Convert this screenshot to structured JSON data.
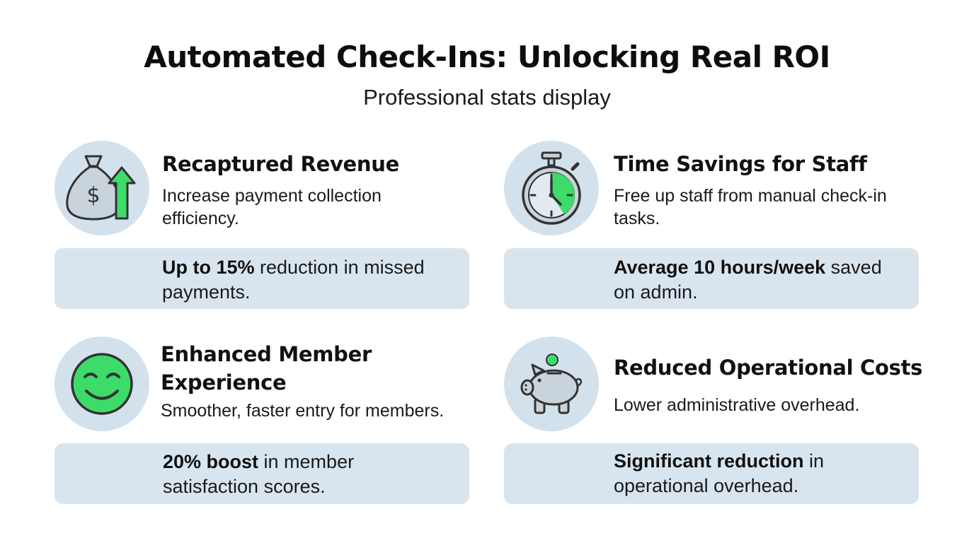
{
  "header": {
    "title": "Automated Check-Ins: Unlocking Real ROI",
    "subtitle": "Professional stats display"
  },
  "cards": [
    {
      "icon": "money-bag-arrow-up-icon",
      "title": "Recaptured Revenue",
      "description": "Increase payment collection efficiency.",
      "stat_highlight": "Up to 15%",
      "stat_rest": " reduction in missed payments."
    },
    {
      "icon": "stopwatch-icon",
      "title": "Time Savings for Staff",
      "description": "Free up staff from manual check-in tasks.",
      "stat_highlight": "Average 10 hours/week",
      "stat_rest": " saved on admin."
    },
    {
      "icon": "smiley-face-icon",
      "title": "Enhanced Member Experience",
      "description": "Smoother, faster entry for members.",
      "stat_highlight": "20% boost",
      "stat_rest": " in member satisfaction scores."
    },
    {
      "icon": "piggy-bank-icon",
      "title": "Reduced Operational Costs",
      "description": "Lower administrative overhead.",
      "stat_highlight": "Significant reduction",
      "stat_rest": " in operational overhead."
    }
  ],
  "colors": {
    "accent_green": "#3ddc6a",
    "icon_circle": "#d3e1ec",
    "stat_box": "#d9e5ee",
    "icon_gray": "#c9d3dc",
    "outline": "#333333"
  }
}
